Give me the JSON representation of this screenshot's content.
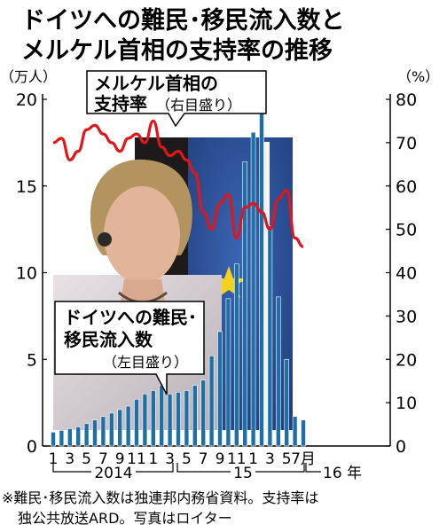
{
  "title": [
    "ドイツへの難民･移民流入数と",
    "メルケル首相の支持率の推移"
  ],
  "left_unit": "（万人）",
  "right_unit": "（%）",
  "note": [
    "※難民･移民流入数は独連邦内務省資料。支持率は",
    "独公共放送ARD。写真はロイター"
  ],
  "colors": {
    "bar": "#1d6fa6",
    "line": "#e0161b",
    "text": "#000000",
    "background": "#ffffff"
  },
  "photo": "angela-merkel-photo",
  "chart_data": {
    "type": "bar",
    "y_left": {
      "ylim": [
        0,
        20
      ],
      "ticks": [
        "0",
        "5",
        "10",
        "15",
        "20"
      ]
    },
    "y_right": {
      "ylim": [
        0,
        80
      ],
      "ticks": [
        "0",
        "10",
        "20",
        "30",
        "40",
        "50",
        "60",
        "70",
        "80"
      ]
    },
    "x_ticks": [
      "1",
      "3",
      "5",
      "7",
      "9",
      "11",
      "1",
      "3",
      "5",
      "7",
      "9",
      "11",
      "1",
      "3",
      "5",
      "7月"
    ],
    "year_labels": [
      "2014",
      "15",
      "16 年"
    ],
    "categories": [
      "2014-01",
      "2014-02",
      "2014-03",
      "2014-04",
      "2014-05",
      "2014-06",
      "2014-07",
      "2014-08",
      "2014-09",
      "2014-10",
      "2014-11",
      "2014-12",
      "2015-01",
      "2015-02",
      "2015-03",
      "2015-04",
      "2015-05",
      "2015-06",
      "2015-07",
      "2015-08",
      "2015-09",
      "2015-10",
      "2015-11",
      "2015-12",
      "2016-01",
      "2016-02",
      "2016-03",
      "2016-04",
      "2016-05",
      "2016-06",
      "2016-07"
    ],
    "series": [
      {
        "name": "ドイツへの難民･移民流入数",
        "axis": "left",
        "label": [
          "ドイツへの難民･",
          "移民流入数",
          "（左目盛り）"
        ],
        "values": [
          0.8,
          0.9,
          1.0,
          1.1,
          1.3,
          1.5,
          1.7,
          1.9,
          2.1,
          2.3,
          2.7,
          3.0,
          3.2,
          3.5,
          3.0,
          3.1,
          3.2,
          3.5,
          3.8,
          5.2,
          6.6,
          8.5,
          10.5,
          16.4,
          18.1,
          20.6,
          12.7,
          8.6,
          5.0,
          1.7,
          1.5
        ]
      },
      {
        "name": "メルケル首相の支持率",
        "axis": "right",
        "label": [
          "メルケル首相の",
          "支持率",
          "（右目盛り）"
        ],
        "type": "line",
        "x": [
          "2014-01",
          "2014-02",
          "2014-03",
          "2014-04",
          "2014-05",
          "2014-06",
          "2014-07",
          "2014-08",
          "2014-09",
          "2014-10",
          "2014-11",
          "2014-12",
          "2015-01",
          "2015-02",
          "2015-03",
          "2015-04",
          "2015-05",
          "2015-06",
          "2015-07",
          "2015-08",
          "2015-09",
          "2015-10",
          "2015-11",
          "2015-12",
          "2016-01",
          "2016-02",
          "2016-03",
          "2016-04",
          "2016-05",
          "2016-06",
          "2016-07"
        ],
        "values": [
          70,
          71,
          66,
          68,
          73,
          74,
          72,
          70,
          68,
          71,
          72,
          70,
          75,
          69,
          67,
          68,
          66,
          63,
          54,
          50,
          56,
          58,
          48,
          55,
          56,
          54,
          50,
          57,
          59,
          48,
          46
        ]
      }
    ]
  }
}
